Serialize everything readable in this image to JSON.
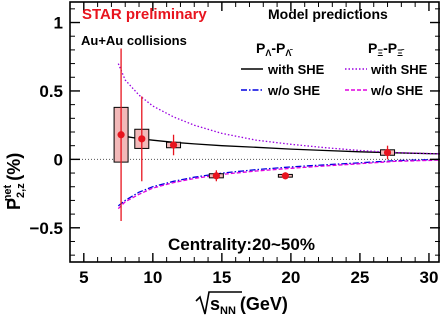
{
  "chart_data": {
    "type": "scatter",
    "title": "",
    "annotations": {
      "preliminary": "STAR preliminary",
      "system": "Au+Au collisions",
      "model_header": "Model predictions",
      "centrality": "Centrality:20~50%"
    },
    "xlabel": "√s_NN (GeV)",
    "xlabel_main": "√s",
    "xlabel_sub": "NN",
    "xlabel_unit": "(GeV)",
    "ylabel": "P^net_2,z (%)",
    "ylabel_main": "P",
    "ylabel_sup": "net",
    "ylabel_sub": "2,z",
    "ylabel_unit": "(%)",
    "xlim": [
      4.0,
      30.8
    ],
    "ylim": [
      -0.75,
      1.15
    ],
    "x_ticks": [
      5,
      10,
      15,
      20,
      25,
      30
    ],
    "x_tick_labels": [
      "5",
      "10",
      "15",
      "20",
      "25",
      "30"
    ],
    "y_ticks": [
      -0.5,
      0,
      0.5,
      1
    ],
    "y_tick_labels": [
      "−0.5",
      "0",
      "0.5",
      "1"
    ],
    "legend": {
      "placement": "top-right",
      "columns": [
        {
          "main": "P",
          "sub1": "Λ",
          "dash": "-P",
          "sub2": "Λ̄"
        },
        {
          "main": "P",
          "sub1": "Ξ",
          "dash": "-P",
          "sub2": "Ξ̄"
        }
      ],
      "rows": [
        "with SHE",
        "w/o SHE"
      ]
    },
    "data_points": {
      "x": [
        7.7,
        9.2,
        11.5,
        14.6,
        19.6,
        27.0
      ],
      "y": [
        0.18,
        0.15,
        0.105,
        -0.12,
        -0.12,
        0.05
      ],
      "stat_err": [
        0.63,
        0.31,
        0.075,
        0.04,
        0.025,
        0.05
      ],
      "sys_err": [
        0.2,
        0.07,
        0.02,
        0.015,
        0.01,
        0.02
      ],
      "color": "#e8141e",
      "box_fill": "#f2b8b8"
    },
    "series": [
      {
        "name": "with SHE",
        "group": "Lambda",
        "style": "solid",
        "color": "#000000",
        "x": [
          7.5,
          8,
          9,
          10,
          11.5,
          13,
          15,
          17.5,
          20,
          22.5,
          25,
          27.5,
          30.8
        ],
        "y": [
          0.175,
          0.168,
          0.152,
          0.14,
          0.125,
          0.113,
          0.1,
          0.088,
          0.075,
          0.065,
          0.055,
          0.048,
          0.04
        ]
      },
      {
        "name": "w/o SHE",
        "group": "Lambda",
        "style": "dashdot",
        "color": "#0000e0",
        "x": [
          7.5,
          8,
          9,
          10,
          11.5,
          13,
          15,
          17.5,
          20,
          22.5,
          25,
          27.5,
          30.8
        ],
        "y": [
          -0.34,
          -0.3,
          -0.24,
          -0.2,
          -0.16,
          -0.13,
          -0.1,
          -0.075,
          -0.055,
          -0.04,
          -0.025,
          -0.01,
          0.0
        ]
      },
      {
        "name": "with SHE",
        "group": "Xi",
        "style": "dotted",
        "color": "#9a00e0",
        "x": [
          7.5,
          8,
          9,
          10,
          11.5,
          13,
          15,
          17.5,
          20,
          22.5,
          25,
          27.5,
          30.8
        ],
        "y": [
          0.7,
          0.58,
          0.47,
          0.39,
          0.31,
          0.25,
          0.19,
          0.14,
          0.11,
          0.085,
          0.065,
          0.05,
          0.04
        ]
      },
      {
        "name": "w/o SHE",
        "group": "Xi",
        "style": "dashed",
        "color": "#e000e0",
        "x": [
          7.5,
          8,
          9,
          10,
          11.5,
          13,
          15,
          17.5,
          20,
          22.5,
          25,
          27.5,
          30.8
        ],
        "y": [
          -0.36,
          -0.31,
          -0.255,
          -0.21,
          -0.17,
          -0.14,
          -0.11,
          -0.085,
          -0.065,
          -0.048,
          -0.032,
          -0.015,
          -0.005
        ]
      }
    ]
  }
}
